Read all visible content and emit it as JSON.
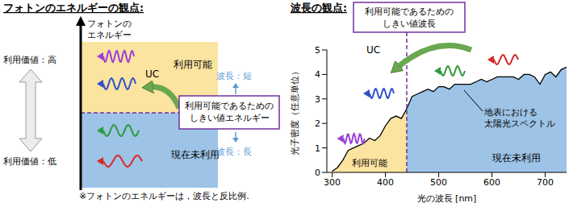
{
  "left_panel": {
    "title": "フォトンのエネルギーの観点:",
    "axis_label": [
      "フォトンの",
      "エネルギー"
    ],
    "value_high": "利用価値：高",
    "value_low": "利用価値：低",
    "usable": "利用可能",
    "unused": "現在未利用",
    "short": "波長：短",
    "long": "波長：長",
    "threshold_label": [
      "利用可能であるための",
      "しきい値エネルギー"
    ],
    "uc": "UC",
    "footnote": "※フォトンのエネルギーは，波長と反比例."
  },
  "chart_data": {
    "type": "area",
    "title": "波長の観点:",
    "x_label": "光の波長 [nm]",
    "y_label": "光子密度（任意単位）",
    "x": [
      300,
      310,
      320,
      330,
      340,
      350,
      360,
      370,
      380,
      390,
      400,
      410,
      420,
      430,
      440,
      450,
      460,
      470,
      480,
      490,
      500,
      510,
      520,
      530,
      540,
      550,
      560,
      570,
      580,
      590,
      600,
      610,
      620,
      630,
      640,
      650,
      660,
      670,
      680,
      690,
      700,
      710,
      720,
      730,
      740
    ],
    "values": [
      0.05,
      0.2,
      0.5,
      0.9,
      1.0,
      1.1,
      1.2,
      1.4,
      1.3,
      1.5,
      1.9,
      2.2,
      2.3,
      2.2,
      2.6,
      3.1,
      3.2,
      3.3,
      3.4,
      3.3,
      3.5,
      3.5,
      3.4,
      3.6,
      3.6,
      3.6,
      3.6,
      3.7,
      3.8,
      3.7,
      3.8,
      3.9,
      3.9,
      3.9,
      3.9,
      3.8,
      4.0,
      4.0,
      3.9,
      3.6,
      4.0,
      4.1,
      3.9,
      4.2,
      4.3
    ],
    "color": "#000000",
    "xlim": [
      290,
      740
    ],
    "xticks": [
      300,
      400,
      500,
      600,
      700
    ],
    "ylim": [
      0,
      5
    ],
    "yticks": [
      0,
      1,
      2,
      3,
      4,
      5
    ],
    "threshold": 440,
    "regions": [
      {
        "label": "利用可能",
        "color": "#fbe3a0"
      },
      {
        "label": "現在未利用",
        "color": "#9dc3e6"
      }
    ],
    "annotations": {
      "threshold_label": [
        "利用可能であるための",
        "しきい値波長"
      ],
      "spectrum_label": [
        "地表における",
        "太陽光スペクトル"
      ],
      "uc": "UC"
    }
  }
}
